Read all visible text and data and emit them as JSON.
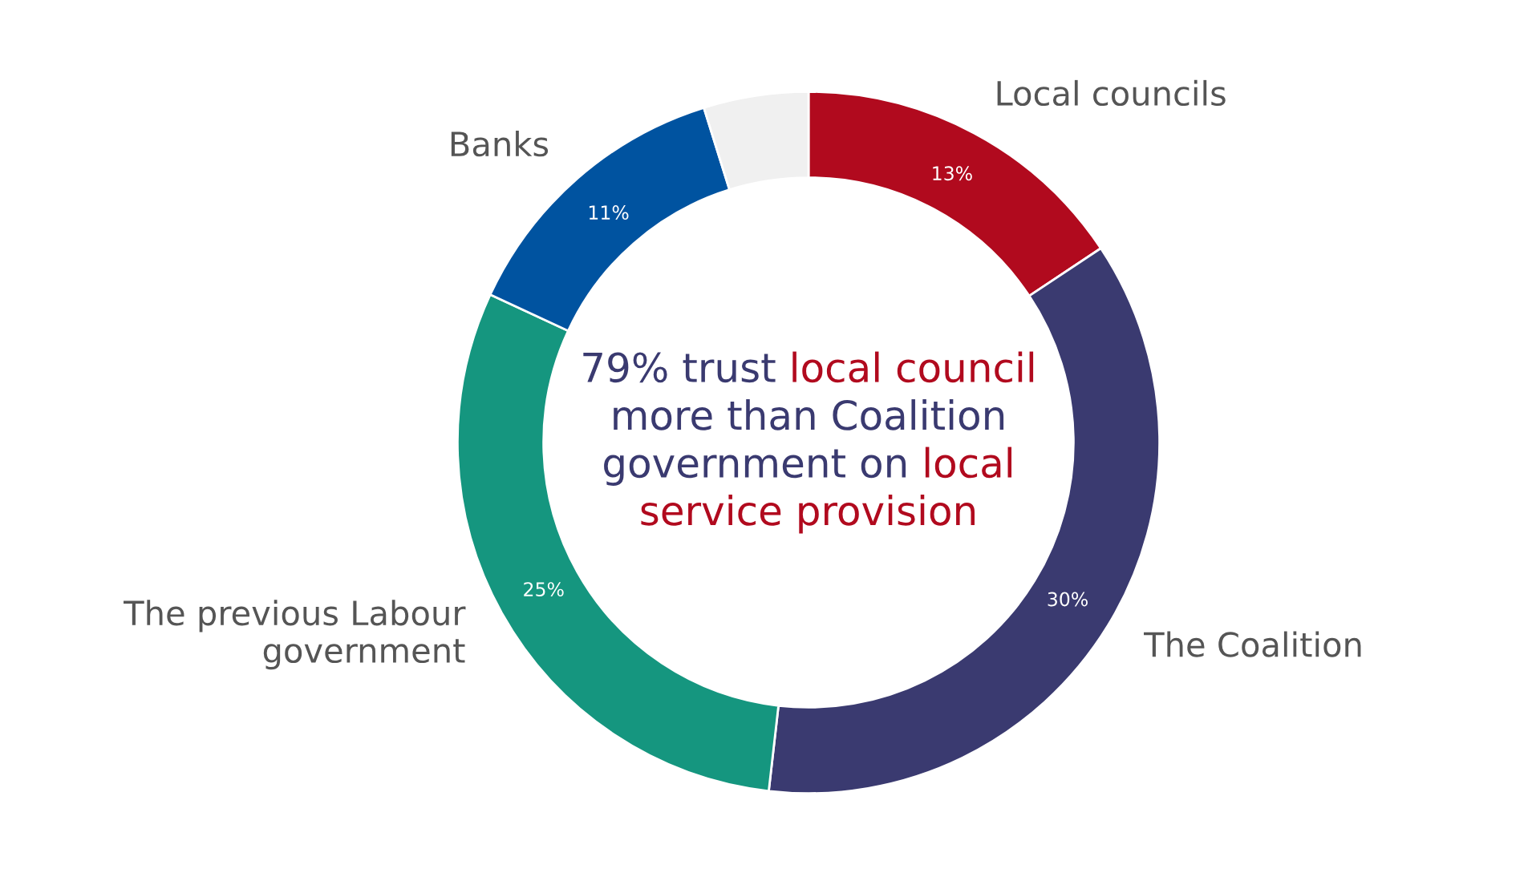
{
  "chart_data": {
    "type": "donut",
    "categories": [
      "Local councils",
      "The Coalition",
      "The previous Labour\ngovernment",
      "Banks",
      null
    ],
    "values": [
      13,
      30,
      25,
      11,
      4
    ],
    "value_labels": [
      "13%",
      "30%",
      "25%",
      "11%",
      null
    ],
    "colors": [
      "#b10a1e",
      "#3a3a70",
      "#15967f",
      "#0053a0",
      "#f0f0f0"
    ],
    "annotations": [
      "79% trust ",
      "local council",
      "\nmore than Coalition\ngovernment on ",
      "local\nservice provision"
    ],
    "legend": false
  }
}
